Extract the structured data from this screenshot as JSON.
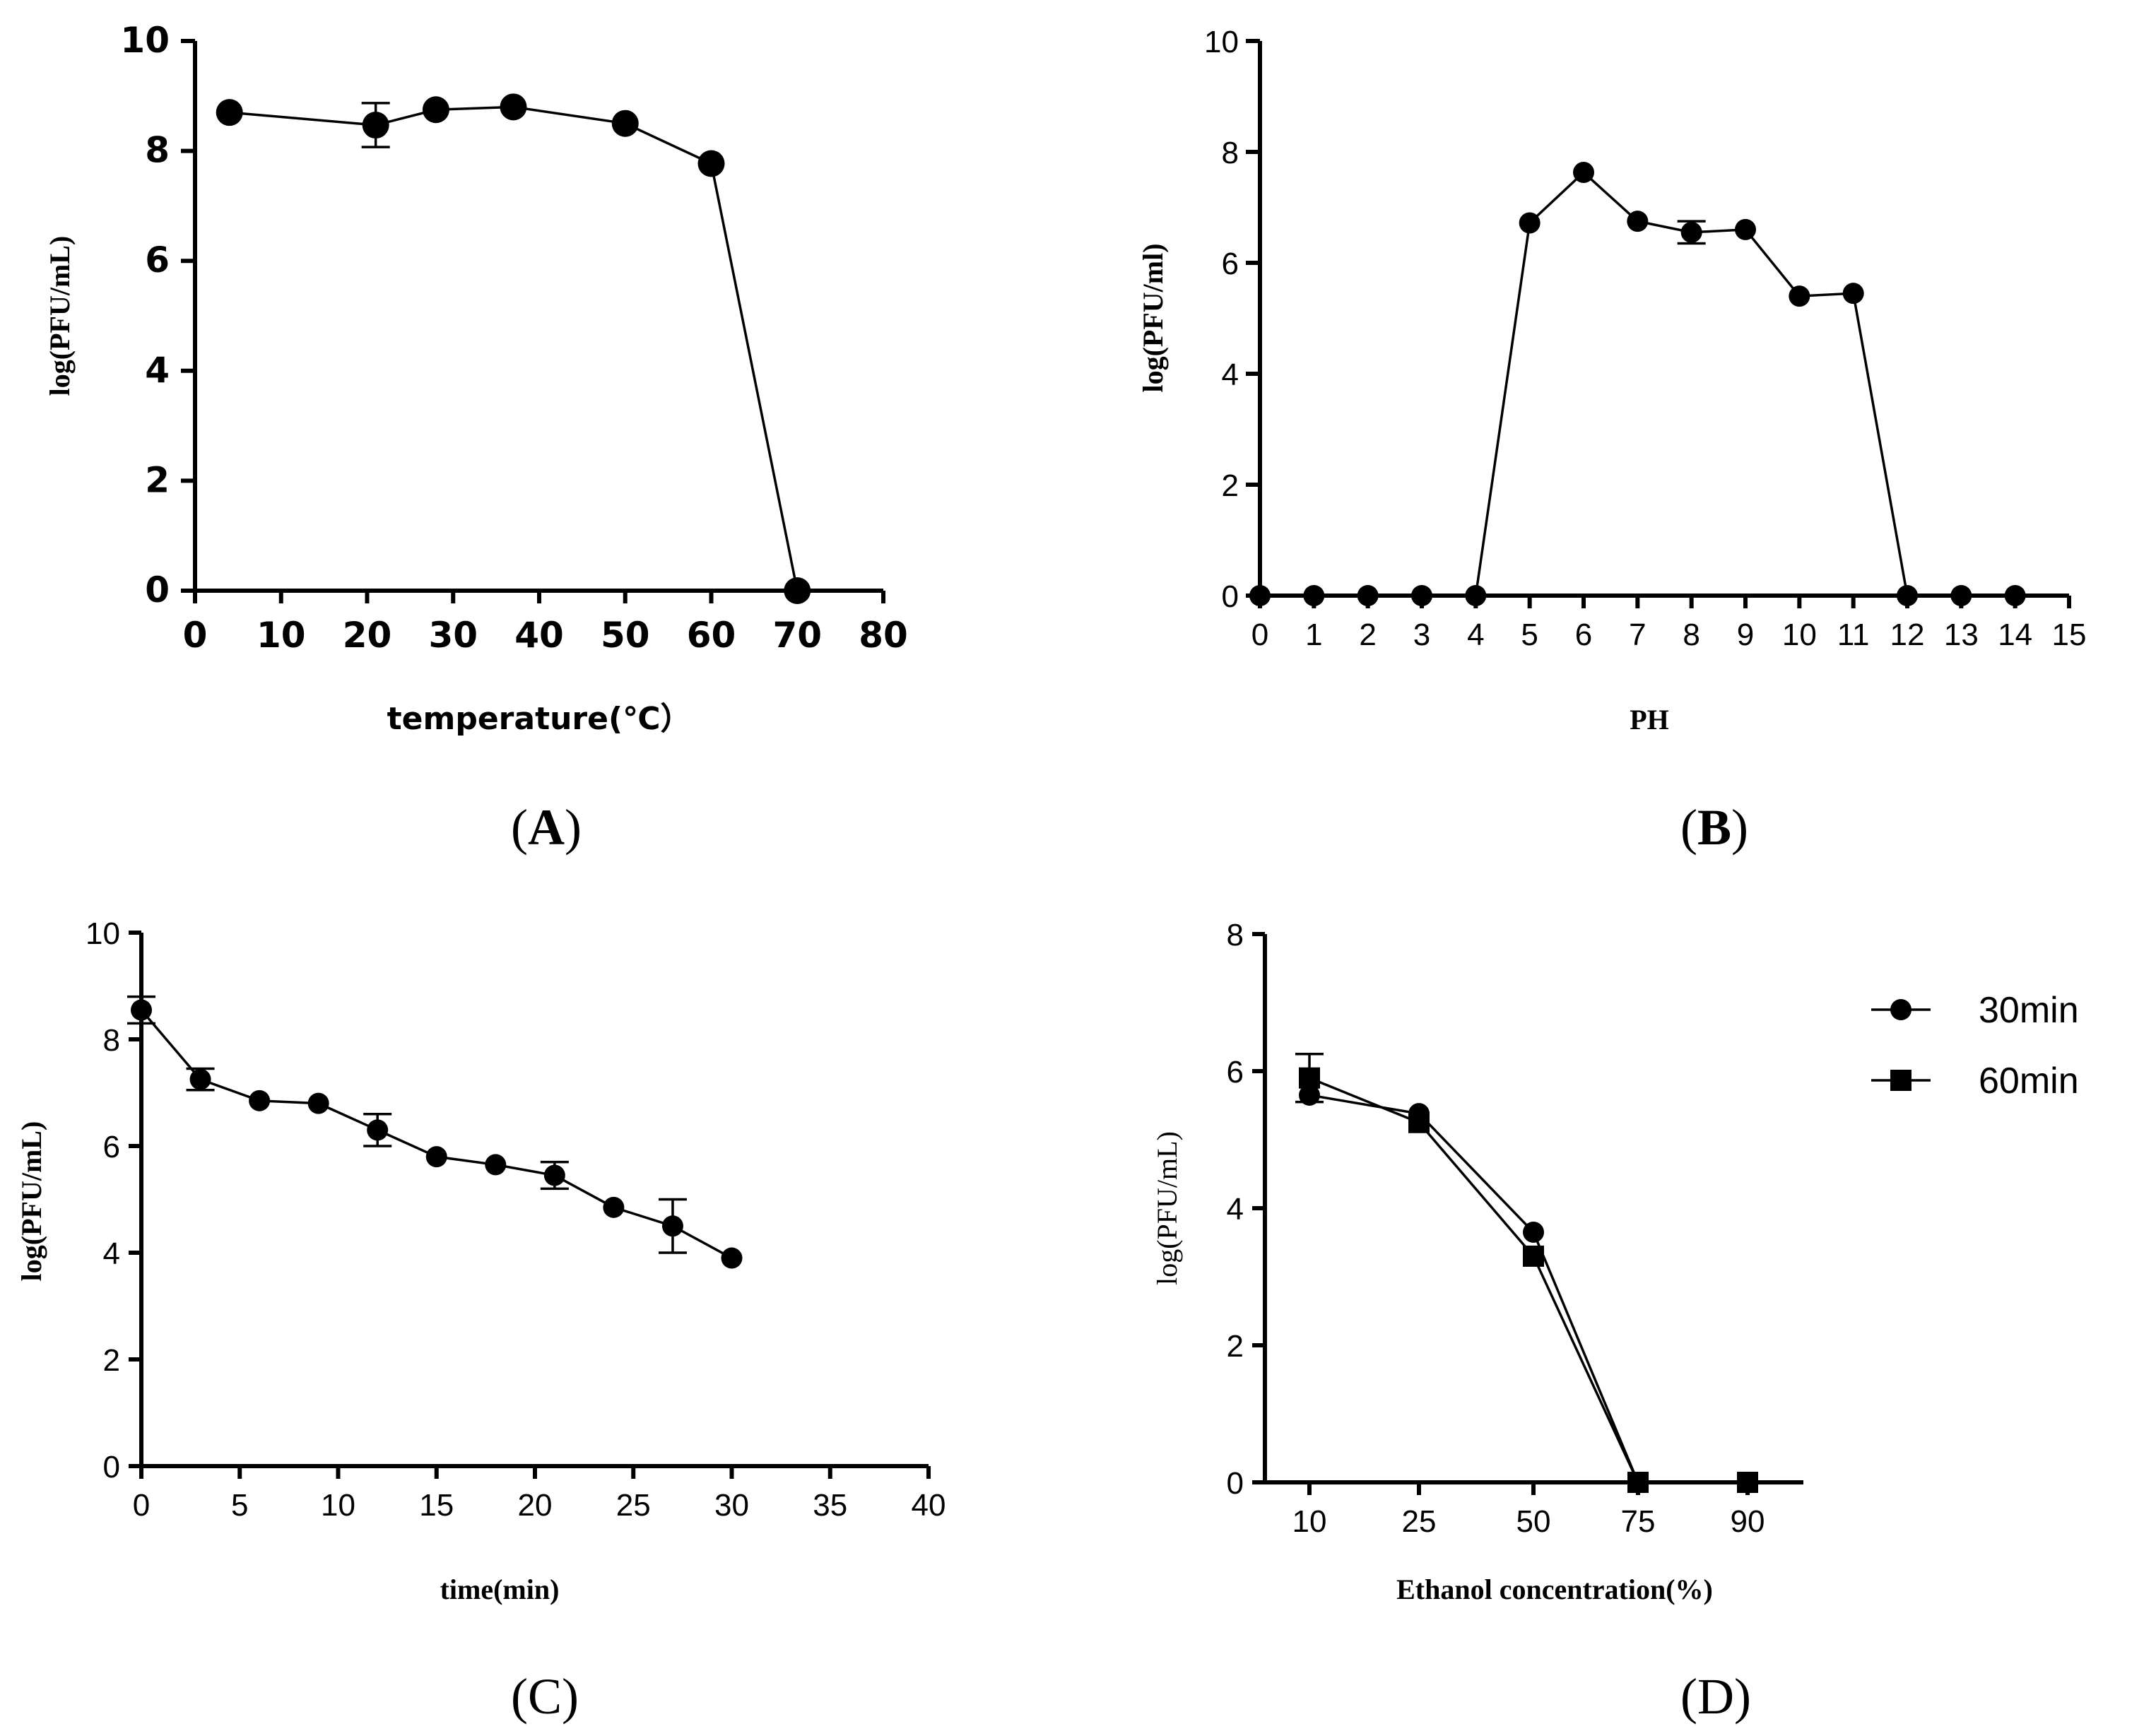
{
  "chart_data": [
    {
      "id": "A",
      "type": "line",
      "panel_label": "A",
      "xlabel": "temperature(℃）",
      "ylabel": "log(PFU/mL)",
      "xlim": [
        0,
        80
      ],
      "ylim": [
        0,
        10
      ],
      "xticks": [
        "0",
        "10",
        "20",
        "30",
        "40",
        "50",
        "60",
        "70",
        "80"
      ],
      "yticks": [
        "0",
        "2",
        "4",
        "6",
        "8",
        "10"
      ],
      "grid": false,
      "series": [
        {
          "name": "",
          "marker": "circle",
          "x": [
            4,
            21,
            28,
            37,
            50,
            60,
            70
          ],
          "y": [
            8.7,
            8.47,
            8.75,
            8.8,
            8.5,
            7.77,
            0
          ],
          "err": [
            0,
            0.4,
            0,
            0,
            0,
            0,
            0
          ]
        }
      ]
    },
    {
      "id": "B",
      "type": "line",
      "panel_label": "B",
      "xlabel": "PH",
      "ylabel": "log(PFU/ml)",
      "xlim": [
        0,
        15
      ],
      "ylim": [
        0,
        10
      ],
      "xticks": [
        "0",
        "1",
        "2",
        "3",
        "4",
        "5",
        "6",
        "7",
        "8",
        "9",
        "10",
        "11",
        "12",
        "13",
        "14",
        "15"
      ],
      "yticks": [
        "0",
        "2",
        "4",
        "6",
        "8",
        "10"
      ],
      "grid": false,
      "series": [
        {
          "name": "",
          "marker": "circle",
          "x": [
            0,
            1,
            2,
            3,
            4,
            5,
            6,
            7,
            8,
            9,
            10,
            11,
            12,
            13,
            14
          ],
          "y": [
            0,
            0,
            0,
            0,
            0,
            6.72,
            7.63,
            6.75,
            6.55,
            6.6,
            5.4,
            5.45,
            0,
            0,
            0
          ],
          "err": [
            0,
            0,
            0,
            0,
            0,
            0,
            0,
            0,
            0.2,
            0,
            0,
            0,
            0,
            0,
            0
          ]
        }
      ]
    },
    {
      "id": "C",
      "type": "line",
      "panel_label": "C",
      "xlabel": "time(min)",
      "ylabel": "log(PFU/mL)",
      "xlim": [
        0,
        40
      ],
      "ylim": [
        0,
        10
      ],
      "xticks": [
        "0",
        "5",
        "10",
        "15",
        "20",
        "25",
        "30",
        "35",
        "40"
      ],
      "yticks": [
        "0",
        "2",
        "4",
        "6",
        "8",
        "10"
      ],
      "grid": false,
      "series": [
        {
          "name": "",
          "marker": "circle",
          "x": [
            0,
            3,
            6,
            9,
            12,
            15,
            18,
            21,
            24,
            27,
            30
          ],
          "y": [
            8.55,
            7.25,
            6.85,
            6.8,
            6.3,
            5.8,
            5.65,
            5.45,
            4.85,
            4.5,
            3.9
          ],
          "err": [
            0.25,
            0.2,
            0,
            0,
            0.3,
            0,
            0,
            0.25,
            0,
            0.5,
            0
          ]
        }
      ]
    },
    {
      "id": "D",
      "type": "line",
      "panel_label": "D",
      "xlabel": "Ethanol concentration(%)",
      "ylabel": "log(PFU/mL)",
      "categories": [
        "10",
        "25",
        "50",
        "75",
        "90"
      ],
      "ylim": [
        0,
        8
      ],
      "yticks": [
        "0",
        "2",
        "4",
        "6",
        "8"
      ],
      "grid": false,
      "legend_position": "top-right outside",
      "series": [
        {
          "name": "30min",
          "marker": "circle",
          "values": [
            5.65,
            5.38,
            3.65,
            0,
            0
          ],
          "err": [
            0,
            0,
            0,
            0,
            0
          ]
        },
        {
          "name": "60min",
          "marker": "square",
          "values": [
            5.9,
            5.25,
            3.3,
            0,
            0
          ],
          "err": [
            0.35,
            0,
            0,
            0,
            0
          ]
        }
      ]
    }
  ]
}
